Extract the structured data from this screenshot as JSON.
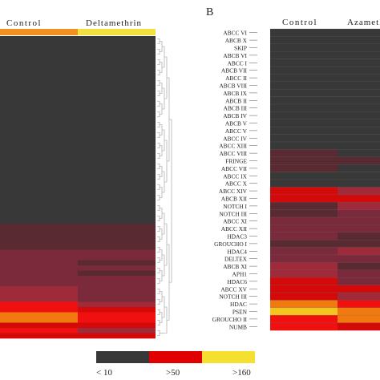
{
  "chart_data": [
    {
      "panel": "",
      "type": "heatmap",
      "columns": [
        "Control",
        "Deltamethrin"
      ],
      "rows": [],
      "values": [
        [
          0,
          0
        ],
        [
          0,
          0
        ],
        [
          0,
          0
        ],
        [
          0,
          0
        ],
        [
          0,
          0
        ],
        [
          0,
          0
        ],
        [
          0,
          0
        ],
        [
          0,
          0
        ],
        [
          0,
          0
        ],
        [
          0,
          0
        ],
        [
          0,
          0
        ],
        [
          0,
          0
        ],
        [
          0,
          0
        ],
        [
          0,
          0
        ],
        [
          0,
          0
        ],
        [
          0,
          0
        ],
        [
          0,
          0
        ],
        [
          0,
          0
        ],
        [
          0,
          0
        ],
        [
          0,
          0
        ],
        [
          0,
          0
        ],
        [
          0,
          0
        ],
        [
          0,
          0
        ],
        [
          0,
          0
        ],
        [
          0,
          0
        ],
        [
          0,
          0
        ],
        [
          0,
          0
        ],
        [
          0,
          0
        ],
        [
          0,
          0
        ],
        [
          0,
          0
        ],
        [
          0,
          0
        ],
        [
          0,
          0
        ],
        [
          0,
          0
        ],
        [
          0,
          0
        ],
        [
          0,
          0
        ],
        [
          0,
          0
        ],
        [
          1,
          1
        ],
        [
          1,
          1
        ],
        [
          1,
          1
        ],
        [
          1,
          1
        ],
        [
          1,
          1
        ],
        [
          2,
          2
        ],
        [
          2,
          2
        ],
        [
          2,
          1
        ],
        [
          2,
          2
        ],
        [
          2,
          1
        ],
        [
          2,
          2
        ],
        [
          2,
          2
        ],
        [
          3,
          2
        ],
        [
          3,
          2
        ],
        [
          3,
          2
        ],
        [
          5,
          3
        ],
        [
          5,
          4
        ],
        [
          6,
          5
        ],
        [
          6,
          5
        ],
        [
          4,
          4
        ],
        [
          5,
          3
        ],
        [
          4,
          4
        ]
      ]
    },
    {
      "panel": "B",
      "type": "heatmap",
      "columns": [
        "Control",
        "Azamethiphos"
      ],
      "rows": [
        "ABCC VI",
        "ABCB X",
        "SKIP",
        "ABCB VI",
        "ABCC I",
        "ABCB VII",
        "ABCC II",
        "ABCB VIII",
        "ABCB IX",
        "ABCB II",
        "ABCB III",
        "ABCB IV",
        "ABCB V",
        "ABCC V",
        "ABCC IV",
        "ABCC XIII",
        "ABCC VIII",
        "FRINGE",
        "ABCC VII",
        "ABCC IX",
        "ABCC X",
        "ABCC XIV",
        "ABCB XII",
        "NOTCH I",
        "NOTCH III",
        "ABCC XI",
        "ABCC XII",
        "HDAC3",
        "GROUCHO I",
        "HDAC4",
        "DELTEX",
        "ABCB XI",
        "APH1",
        "HDAC6",
        "ABCC XV",
        "NOTCH III",
        "HDAC",
        "PSEN",
        "GROUCHO II",
        "NUMB"
      ],
      "values": [
        [
          0,
          0
        ],
        [
          0,
          0
        ],
        [
          0,
          0
        ],
        [
          0,
          0
        ],
        [
          0,
          0
        ],
        [
          0,
          0
        ],
        [
          0,
          0
        ],
        [
          0,
          0
        ],
        [
          0,
          0
        ],
        [
          0,
          0
        ],
        [
          0,
          0
        ],
        [
          0,
          0
        ],
        [
          0,
          0
        ],
        [
          0,
          0
        ],
        [
          0,
          0
        ],
        [
          0,
          0
        ],
        [
          1,
          0
        ],
        [
          1,
          1
        ],
        [
          1,
          0
        ],
        [
          0,
          0
        ],
        [
          0,
          0
        ],
        [
          4,
          3
        ],
        [
          4,
          4
        ],
        [
          1,
          3
        ],
        [
          1,
          2
        ],
        [
          2,
          2
        ],
        [
          2,
          2
        ],
        [
          2,
          1
        ],
        [
          1,
          1
        ],
        [
          2,
          3
        ],
        [
          2,
          2
        ],
        [
          3,
          1
        ],
        [
          3,
          2
        ],
        [
          4,
          2
        ],
        [
          4,
          4
        ],
        [
          4,
          3
        ],
        [
          6,
          5
        ],
        [
          7,
          6
        ],
        [
          5,
          6
        ],
        [
          5,
          4
        ]
      ]
    }
  ],
  "colors": {
    "low": "#383838",
    "mid": "#e00000",
    "high": "#f5e030",
    "ramp": [
      "#383838",
      "#5a2a33",
      "#7a2a3a",
      "#9e2a3a",
      "#d40a0a",
      "#f01010",
      "#f07a10",
      "#f2c520"
    ],
    "control_bar": "#f09020",
    "treatment_bar": "#f2e040",
    "dendrogram": "#9a9a9a",
    "gridline": "#6a6a6a"
  },
  "legend": {
    "labels": [
      "< 10",
      ">50",
      ">160"
    ]
  },
  "panel_b_label": "B",
  "headers": {
    "a_control": "Control",
    "a_treatment": "Deltamethrin",
    "b_control": "Control",
    "b_treatment": "Azameth"
  }
}
